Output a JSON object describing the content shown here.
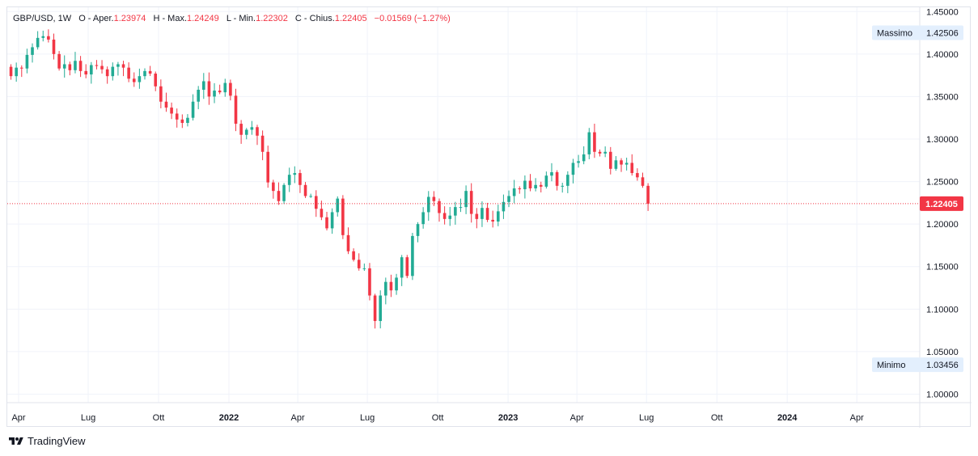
{
  "legend": {
    "symbol": "GBP/USD, 1W",
    "open_label": "O - Aper.",
    "open": "1.23974",
    "high_label": "H - Max.",
    "high": "1.24249",
    "low_label": "L - Min.",
    "low": "1.22302",
    "close_label": "C - Chius.",
    "close": "1.22405",
    "change": "−0.01569 (−1.27%)"
  },
  "footer": {
    "brand": "TradingView"
  },
  "colors": {
    "up": "#22ab94",
    "down": "#f23645",
    "grid": "#f0f3fa",
    "axis_text": "#131722"
  },
  "chart_data": {
    "type": "candlestick",
    "title": "GBP/USD, 1W",
    "ylim": [
      1.0,
      1.45
    ],
    "y_ticks": [
      "1.45000",
      "1.40000",
      "1.35000",
      "1.30000",
      "1.25000",
      "1.20000",
      "1.15000",
      "1.10000",
      "1.05000",
      "1.00000"
    ],
    "x_ticks": [
      {
        "label": "Apr",
        "date": "2021-04-01",
        "bold": false
      },
      {
        "label": "Lug",
        "date": "2021-07-01",
        "bold": false
      },
      {
        "label": "Ott",
        "date": "2021-10-01",
        "bold": false
      },
      {
        "label": "2022",
        "date": "2022-01-01",
        "bold": true
      },
      {
        "label": "Apr",
        "date": "2022-04-01",
        "bold": false
      },
      {
        "label": "Lug",
        "date": "2022-07-01",
        "bold": false
      },
      {
        "label": "Ott",
        "date": "2022-10-01",
        "bold": false
      },
      {
        "label": "2023",
        "date": "2023-01-01",
        "bold": true
      },
      {
        "label": "Apr",
        "date": "2023-04-01",
        "bold": false
      },
      {
        "label": "Lug",
        "date": "2023-07-01",
        "bold": false
      },
      {
        "label": "Ott",
        "date": "2023-10-01",
        "bold": false
      },
      {
        "label": "2024",
        "date": "2024-01-01",
        "bold": true
      },
      {
        "label": "Apr",
        "date": "2024-04-01",
        "bold": false
      }
    ],
    "max_marker": {
      "label": "Massimo",
      "value": "1.42506"
    },
    "min_marker": {
      "label": "Minimo",
      "value": "1.03456"
    },
    "last_price": {
      "value": "1.22405"
    },
    "start_date": "2021-03-15",
    "closes": [
      1.385,
      1.374,
      1.384,
      1.383,
      1.399,
      1.408,
      1.419,
      1.421,
      1.417,
      1.4,
      1.383,
      1.388,
      1.381,
      1.392,
      1.38,
      1.376,
      1.387,
      1.386,
      1.382,
      1.374,
      1.385,
      1.388,
      1.384,
      1.371,
      1.367,
      1.374,
      1.38,
      1.377,
      1.362,
      1.344,
      1.337,
      1.33,
      1.323,
      1.319,
      1.325,
      1.344,
      1.358,
      1.368,
      1.35,
      1.357,
      1.355,
      1.366,
      1.351,
      1.318,
      1.305,
      1.311,
      1.314,
      1.304,
      1.285,
      1.249,
      1.239,
      1.227,
      1.246,
      1.258,
      1.26,
      1.246,
      1.233,
      1.233,
      1.218,
      1.208,
      1.195,
      1.214,
      1.23,
      1.187,
      1.168,
      1.158,
      1.148,
      1.148,
      1.116,
      1.086,
      1.116,
      1.132,
      1.122,
      1.137,
      1.161,
      1.139,
      1.186,
      1.2,
      1.214,
      1.232,
      1.227,
      1.213,
      1.206,
      1.21,
      1.22,
      1.22,
      1.239,
      1.212,
      1.206,
      1.219,
      1.205,
      1.203,
      1.215,
      1.226,
      1.233,
      1.242,
      1.241,
      1.251,
      1.242,
      1.246,
      1.244,
      1.257,
      1.261,
      1.245,
      1.245,
      1.258,
      1.272,
      1.274,
      1.282,
      1.308,
      1.285,
      1.283,
      1.285,
      1.265,
      1.275,
      1.27,
      1.272,
      1.26,
      1.255,
      1.245,
      1.224
    ]
  }
}
